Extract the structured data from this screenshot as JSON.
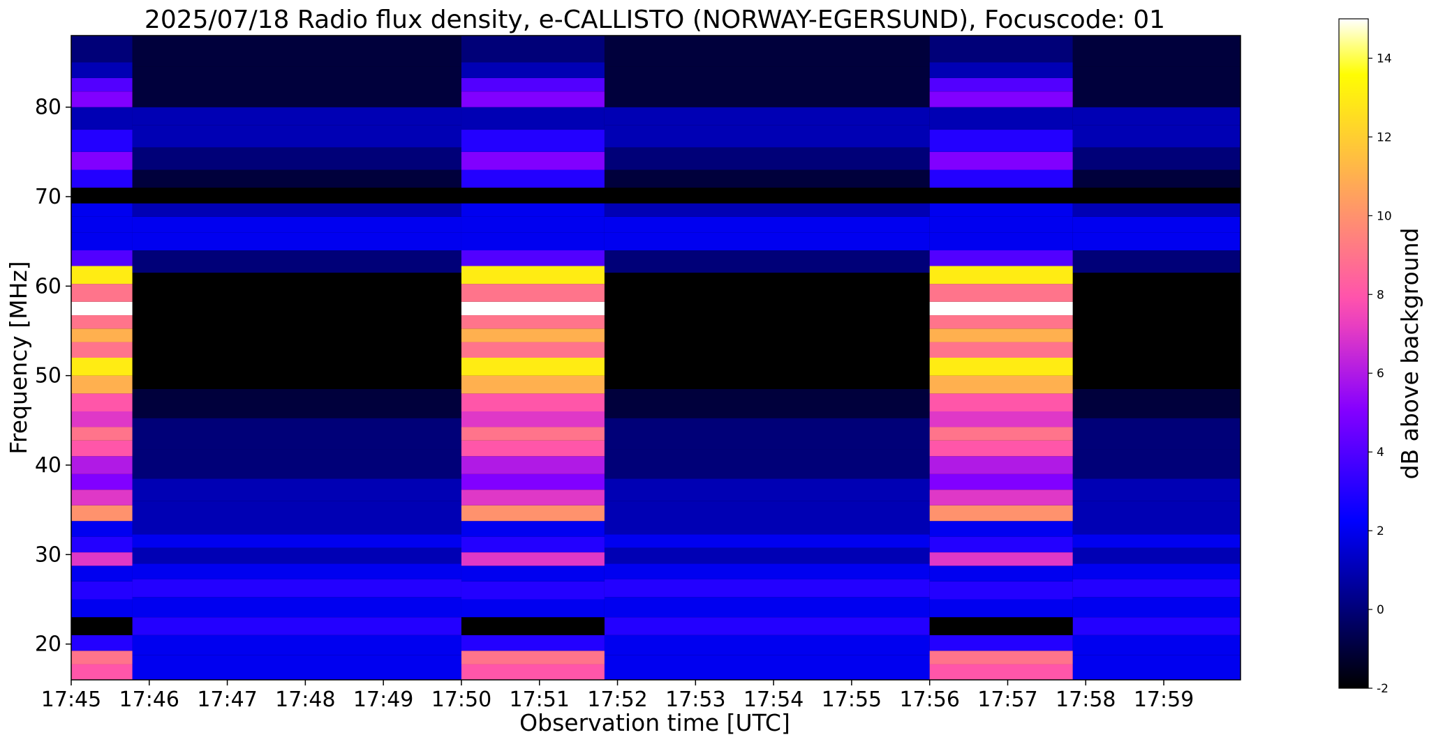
{
  "chart_data": {
    "type": "heatmap",
    "title": "2025/07/18  Radio flux density, e-CALLISTO (NORWAY-EGERSUND), Focuscode: 01",
    "xlabel": "Observation time [UTC]",
    "ylabel": "Frequency [MHz]",
    "colorbar_label": "dB above background",
    "colormap": "gnuplot2",
    "x_range": [
      "17:45:00",
      "17:59:59"
    ],
    "y_range": [
      16,
      88
    ],
    "color_range": [
      -2,
      15
    ],
    "x_ticks": [
      "17:45",
      "17:46",
      "17:47",
      "17:48",
      "17:49",
      "17:50",
      "17:51",
      "17:52",
      "17:53",
      "17:54",
      "17:55",
      "17:56",
      "17:57",
      "17:58",
      "17:59"
    ],
    "y_ticks": [
      20,
      30,
      40,
      50,
      60,
      70,
      80
    ],
    "colorbar_ticks": [
      -2,
      0,
      2,
      4,
      6,
      8,
      10,
      12,
      14
    ],
    "calibration_intervals": [
      {
        "start": "17:45:00",
        "end": "17:45:47"
      },
      {
        "start": "17:50:00",
        "end": "17:51:50"
      },
      {
        "start": "17:56:00",
        "end": "17:57:50"
      }
    ],
    "calibration_band_levels_db": [
      {
        "f": 17,
        "db": 8
      },
      {
        "f": 18.5,
        "db": 9
      },
      {
        "f": 20,
        "db": 3
      },
      {
        "f": 22,
        "db": -2
      },
      {
        "f": 24,
        "db": 2
      },
      {
        "f": 26,
        "db": 3
      },
      {
        "f": 28,
        "db": 2
      },
      {
        "f": 29.5,
        "db": 7
      },
      {
        "f": 31,
        "db": 3
      },
      {
        "f": 33,
        "db": 2
      },
      {
        "f": 34.5,
        "db": 10
      },
      {
        "f": 36.5,
        "db": 7
      },
      {
        "f": 38,
        "db": 5
      },
      {
        "f": 40,
        "db": 6
      },
      {
        "f": 42,
        "db": 8
      },
      {
        "f": 43.5,
        "db": 9
      },
      {
        "f": 45,
        "db": 7
      },
      {
        "f": 47,
        "db": 8
      },
      {
        "f": 49,
        "db": 11
      },
      {
        "f": 51,
        "db": 13
      },
      {
        "f": 53,
        "db": 9
      },
      {
        "f": 54.5,
        "db": 11
      },
      {
        "f": 56,
        "db": 9
      },
      {
        "f": 57.5,
        "db": 15
      },
      {
        "f": 59,
        "db": 9
      },
      {
        "f": 61.5,
        "db": 13
      },
      {
        "f": 63,
        "db": 4
      },
      {
        "f": 65,
        "db": 2
      },
      {
        "f": 67,
        "db": 2
      },
      {
        "f": 68.5,
        "db": 2
      },
      {
        "f": 70,
        "db": -2
      },
      {
        "f": 72,
        "db": 3
      },
      {
        "f": 74,
        "db": 5
      },
      {
        "f": 76,
        "db": 3
      },
      {
        "f": 79,
        "db": 1
      },
      {
        "f": 81,
        "db": 5
      },
      {
        "f": 82.5,
        "db": 4
      },
      {
        "f": 84,
        "db": 1
      },
      {
        "f": 86,
        "db": 0
      }
    ],
    "background_band_levels_db": [
      {
        "f": 17.5,
        "db": 2
      },
      {
        "f": 20,
        "db": 2
      },
      {
        "f": 22,
        "db": 3
      },
      {
        "f": 24,
        "db": 2
      },
      {
        "f": 26.5,
        "db": 3
      },
      {
        "f": 28,
        "db": 2
      },
      {
        "f": 30,
        "db": 1
      },
      {
        "f": 31.5,
        "db": 2
      },
      {
        "f": 33,
        "db": 1
      },
      {
        "f": 35,
        "db": 1
      },
      {
        "f": 37,
        "db": 1
      },
      {
        "f": 40,
        "db": 0
      },
      {
        "f": 43.5,
        "db": 0
      },
      {
        "f": 47,
        "db": -1
      },
      {
        "f": 50,
        "db": -2
      },
      {
        "f": 55,
        "db": -2
      },
      {
        "f": 60,
        "db": -2
      },
      {
        "f": 63,
        "db": 0
      },
      {
        "f": 65,
        "db": 2
      },
      {
        "f": 67,
        "db": 2
      },
      {
        "f": 68.5,
        "db": 1
      },
      {
        "f": 70,
        "db": -2
      },
      {
        "f": 72,
        "db": -1
      },
      {
        "f": 74,
        "db": 0
      },
      {
        "f": 77,
        "db": 1
      },
      {
        "f": 79,
        "db": 1
      },
      {
        "f": 81,
        "db": -1
      },
      {
        "f": 83,
        "db": -1
      },
      {
        "f": 86,
        "db": -1
      }
    ]
  }
}
